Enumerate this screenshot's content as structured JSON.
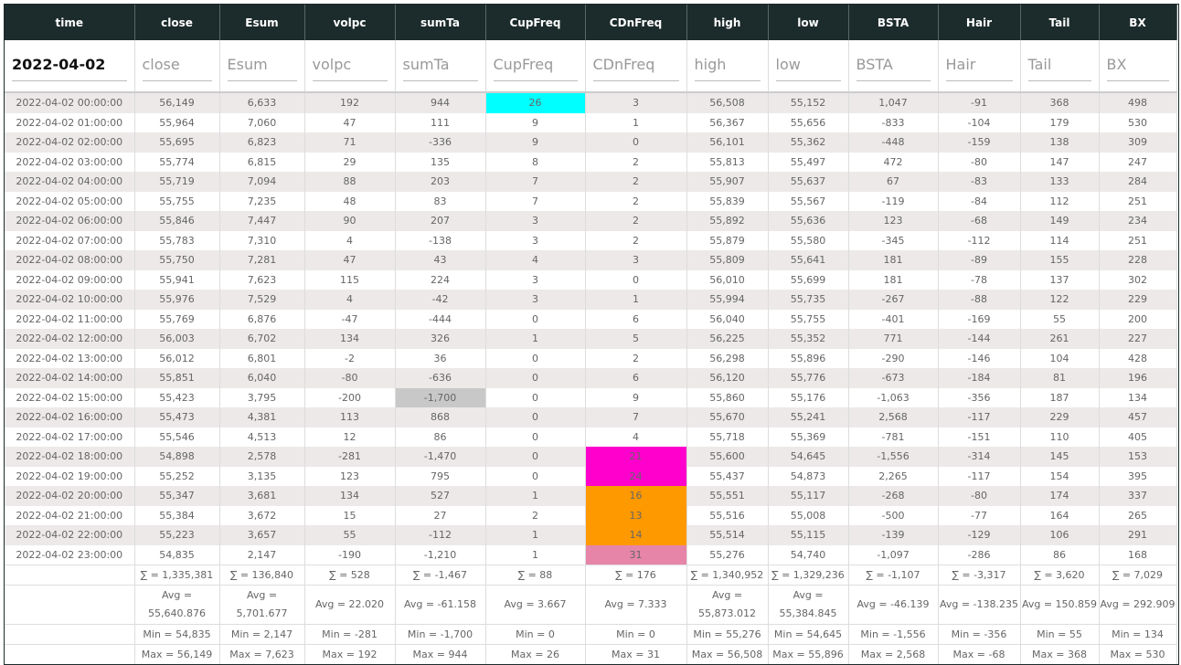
{
  "table": {
    "columns": [
      "time",
      "close",
      "Esum",
      "volpc",
      "sumTa",
      "CupFreq",
      "CDnFreq",
      "high",
      "low",
      "BSTA",
      "Hair",
      "Tail",
      "BX"
    ],
    "filters": [
      "2022-04-02",
      "close",
      "Esum",
      "volpc",
      "sumTa",
      "CupFreq",
      "CDnFreq",
      "high",
      "low",
      "BSTA",
      "Hair",
      "Tail",
      "BX"
    ],
    "rows": [
      [
        "2022-04-02 00:00:00",
        "56,149",
        "6,633",
        "192",
        "944",
        "26",
        "3",
        "56,508",
        "55,152",
        "1,047",
        "-91",
        "368",
        "498"
      ],
      [
        "2022-04-02 01:00:00",
        "55,964",
        "7,060",
        "47",
        "111",
        "9",
        "1",
        "56,367",
        "55,656",
        "-833",
        "-104",
        "179",
        "530"
      ],
      [
        "2022-04-02 02:00:00",
        "55,695",
        "6,823",
        "71",
        "-336",
        "9",
        "0",
        "56,101",
        "55,362",
        "-448",
        "-159",
        "138",
        "309"
      ],
      [
        "2022-04-02 03:00:00",
        "55,774",
        "6,815",
        "29",
        "135",
        "8",
        "2",
        "55,813",
        "55,497",
        "472",
        "-80",
        "147",
        "247"
      ],
      [
        "2022-04-02 04:00:00",
        "55,719",
        "7,094",
        "88",
        "203",
        "7",
        "2",
        "55,907",
        "55,637",
        "67",
        "-83",
        "133",
        "284"
      ],
      [
        "2022-04-02 05:00:00",
        "55,755",
        "7,235",
        "48",
        "83",
        "7",
        "2",
        "55,839",
        "55,567",
        "-119",
        "-84",
        "112",
        "251"
      ],
      [
        "2022-04-02 06:00:00",
        "55,846",
        "7,447",
        "90",
        "207",
        "3",
        "2",
        "55,892",
        "55,636",
        "123",
        "-68",
        "149",
        "234"
      ],
      [
        "2022-04-02 07:00:00",
        "55,783",
        "7,310",
        "4",
        "-138",
        "3",
        "2",
        "55,879",
        "55,580",
        "-345",
        "-112",
        "114",
        "251"
      ],
      [
        "2022-04-02 08:00:00",
        "55,750",
        "7,281",
        "47",
        "43",
        "4",
        "3",
        "55,809",
        "55,641",
        "181",
        "-89",
        "155",
        "228"
      ],
      [
        "2022-04-02 09:00:00",
        "55,941",
        "7,623",
        "115",
        "224",
        "3",
        "0",
        "56,010",
        "55,699",
        "181",
        "-78",
        "137",
        "302"
      ],
      [
        "2022-04-02 10:00:00",
        "55,976",
        "7,529",
        "4",
        "-42",
        "3",
        "1",
        "55,994",
        "55,735",
        "-267",
        "-88",
        "122",
        "229"
      ],
      [
        "2022-04-02 11:00:00",
        "55,769",
        "6,876",
        "-47",
        "-444",
        "0",
        "6",
        "56,040",
        "55,755",
        "-401",
        "-169",
        "55",
        "200"
      ],
      [
        "2022-04-02 12:00:00",
        "56,003",
        "6,702",
        "134",
        "326",
        "1",
        "5",
        "56,225",
        "55,352",
        "771",
        "-144",
        "261",
        "227"
      ],
      [
        "2022-04-02 13:00:00",
        "56,012",
        "6,801",
        "-2",
        "36",
        "0",
        "2",
        "56,298",
        "55,896",
        "-290",
        "-146",
        "104",
        "428"
      ],
      [
        "2022-04-02 14:00:00",
        "55,851",
        "6,040",
        "-80",
        "-636",
        "0",
        "6",
        "56,120",
        "55,776",
        "-673",
        "-184",
        "81",
        "196"
      ],
      [
        "2022-04-02 15:00:00",
        "55,423",
        "3,795",
        "-200",
        "-1,700",
        "0",
        "9",
        "55,860",
        "55,176",
        "-1,063",
        "-356",
        "187",
        "134"
      ],
      [
        "2022-04-02 16:00:00",
        "55,473",
        "4,381",
        "113",
        "868",
        "0",
        "7",
        "55,670",
        "55,241",
        "2,568",
        "-117",
        "229",
        "457"
      ],
      [
        "2022-04-02 17:00:00",
        "55,546",
        "4,513",
        "12",
        "86",
        "0",
        "4",
        "55,718",
        "55,369",
        "-781",
        "-151",
        "110",
        "405"
      ],
      [
        "2022-04-02 18:00:00",
        "54,898",
        "2,578",
        "-281",
        "-1,470",
        "0",
        "21",
        "55,600",
        "54,645",
        "-1,556",
        "-314",
        "145",
        "153"
      ],
      [
        "2022-04-02 19:00:00",
        "55,252",
        "3,135",
        "123",
        "795",
        "0",
        "24",
        "55,437",
        "54,873",
        "2,265",
        "-117",
        "154",
        "395"
      ],
      [
        "2022-04-02 20:00:00",
        "55,347",
        "3,681",
        "134",
        "527",
        "1",
        "16",
        "55,551",
        "55,117",
        "-268",
        "-80",
        "174",
        "337"
      ],
      [
        "2022-04-02 21:00:00",
        "55,384",
        "3,672",
        "15",
        "27",
        "2",
        "13",
        "55,516",
        "55,008",
        "-500",
        "-77",
        "164",
        "265"
      ],
      [
        "2022-04-02 22:00:00",
        "55,223",
        "3,657",
        "55",
        "-112",
        "1",
        "14",
        "55,514",
        "55,115",
        "-139",
        "-129",
        "106",
        "291"
      ],
      [
        "2022-04-02 23:00:00",
        "54,835",
        "2,147",
        "-190",
        "-1,210",
        "1",
        "31",
        "55,276",
        "54,740",
        "-1,097",
        "-286",
        "86",
        "168"
      ]
    ],
    "footer": [
      [
        "∑ = 1,335,381",
        "∑ = 136,840",
        "∑ = 528",
        "∑ = -1,467",
        "∑ = 88",
        "∑ = 176",
        "∑ = 1,340,952",
        "∑ = 1,329,236",
        "∑ = -1,107",
        "∑ = -3,317",
        "∑ = 3,620",
        "∑ = 7,029"
      ],
      [
        "Avg = 55,640.876",
        "Avg = 5,701.677",
        "Avg = 22.020",
        "Avg = -61.158",
        "Avg = 3.667",
        "Avg = 7.333",
        "Avg = 55,873.012",
        "Avg = 55,384.845",
        "Avg = -46.139",
        "Avg = -138.235",
        "Avg = 150.859",
        "Avg = 292.909"
      ],
      [
        "Min = 54,835",
        "Min = 2,147",
        "Min = -281",
        "Min = -1,700",
        "Min = 0",
        "Min = 0",
        "Min = 55,276",
        "Min = 54,645",
        "Min = -1,556",
        "Min = -356",
        "Min = 55",
        "Min = 134"
      ],
      [
        "Max = 56,149",
        "Max = 7,623",
        "Max = 192",
        "Max = 944",
        "Max = 26",
        "Max = 31",
        "Max = 56,508",
        "Max = 55,896",
        "Max = 2,568",
        "Max = -68",
        "Max = 368",
        "Max = 530"
      ]
    ]
  }
}
